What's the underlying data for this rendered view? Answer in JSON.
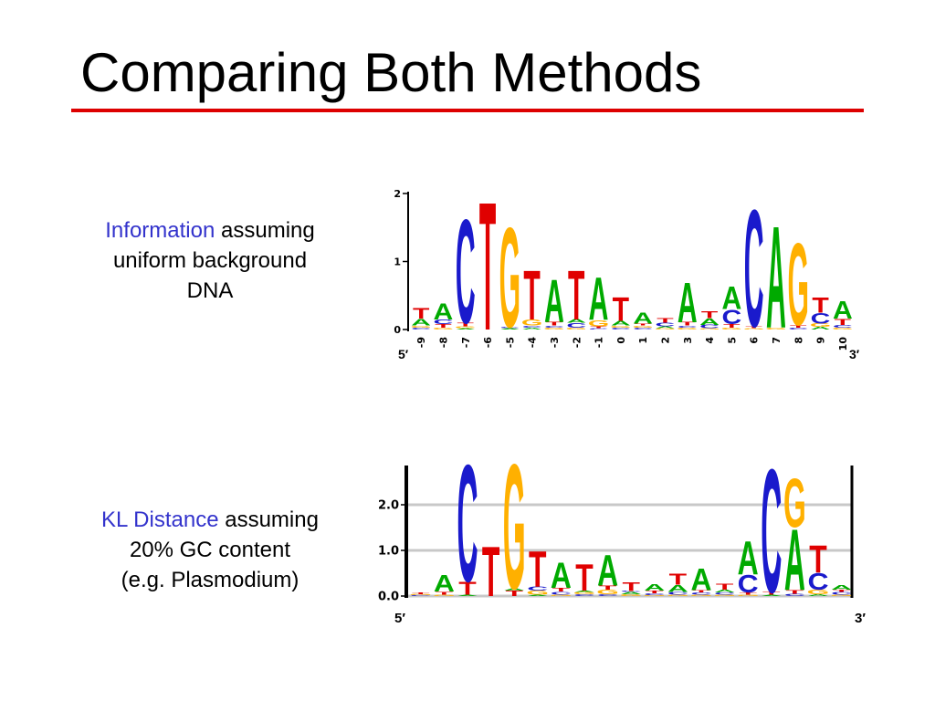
{
  "slide": {
    "title": "Comparing Both Methods"
  },
  "colors": {
    "A": "#00aa00",
    "C": "#1a1acc",
    "G": "#ffb000",
    "T": "#e00000",
    "accent_rule": "#dd0000",
    "highlight": "#3333cc"
  },
  "captions": [
    {
      "highlight": "Information",
      "rest": "assuming",
      "line2": "uniform background",
      "line3": "DNA"
    },
    {
      "highlight": "KL Distance",
      "rest": "assuming",
      "line2": "20% GC content",
      "line3": "(e.g. Plasmodium)"
    }
  ],
  "chart_data": [
    {
      "type": "sequence-logo",
      "ylim": [
        0,
        2
      ],
      "y_ticks": [
        "0",
        "1",
        "2"
      ],
      "x_labels": [
        "-9",
        "-8",
        "-7",
        "-6",
        "-5",
        "-4",
        "-3",
        "-2",
        "-1",
        "0",
        "1",
        "2",
        "3",
        "4",
        "5",
        "6",
        "7",
        "8",
        "9",
        "10"
      ],
      "end_labels": [
        "5′",
        "3′"
      ],
      "positions": [
        [
          [
            "C",
            0.03
          ],
          [
            "G",
            0.03
          ],
          [
            "A",
            0.1
          ],
          [
            "T",
            0.16
          ]
        ],
        [
          [
            "G",
            0.03
          ],
          [
            "T",
            0.05
          ],
          [
            "C",
            0.07
          ],
          [
            "A",
            0.24
          ]
        ],
        [
          [
            "A",
            0.02
          ],
          [
            "G",
            0.03
          ],
          [
            "T",
            0.05
          ],
          [
            "C",
            1.58
          ]
        ],
        [
          [
            "T",
            1.95
          ]
        ],
        [
          [
            "A",
            0.02
          ],
          [
            "C",
            0.02
          ],
          [
            "G",
            1.52
          ]
        ],
        [
          [
            "A",
            0.03
          ],
          [
            "C",
            0.03
          ],
          [
            "G",
            0.09
          ],
          [
            "T",
            0.75
          ]
        ],
        [
          [
            "G",
            0.03
          ],
          [
            "C",
            0.03
          ],
          [
            "T",
            0.05
          ],
          [
            "A",
            0.65
          ]
        ],
        [
          [
            "G",
            0.03
          ],
          [
            "C",
            0.07
          ],
          [
            "A",
            0.05
          ],
          [
            "T",
            0.75
          ]
        ],
        [
          [
            "C",
            0.02
          ],
          [
            "T",
            0.03
          ],
          [
            "G",
            0.09
          ],
          [
            "A",
            0.65
          ]
        ],
        [
          [
            "C",
            0.03
          ],
          [
            "G",
            0.03
          ],
          [
            "A",
            0.07
          ],
          [
            "T",
            0.36
          ]
        ],
        [
          [
            "C",
            0.03
          ],
          [
            "G",
            0.03
          ],
          [
            "T",
            0.03
          ],
          [
            "A",
            0.17
          ]
        ],
        [
          [
            "G",
            0.02
          ],
          [
            "A",
            0.03
          ],
          [
            "C",
            0.05
          ],
          [
            "T",
            0.07
          ]
        ],
        [
          [
            "G",
            0.03
          ],
          [
            "C",
            0.03
          ],
          [
            "T",
            0.05
          ],
          [
            "A",
            0.6
          ]
        ],
        [
          [
            "G",
            0.02
          ],
          [
            "C",
            0.05
          ],
          [
            "A",
            0.1
          ],
          [
            "T",
            0.11
          ]
        ],
        [
          [
            "G",
            0.03
          ],
          [
            "T",
            0.05
          ],
          [
            "C",
            0.22
          ],
          [
            "A",
            0.34
          ]
        ],
        [
          [
            "G",
            0.02
          ],
          [
            "T",
            0.03
          ],
          [
            "C",
            1.78
          ]
        ],
        [
          [
            "G",
            0.03
          ],
          [
            "A",
            1.55
          ]
        ],
        [
          [
            "C",
            0.03
          ],
          [
            "T",
            0.04
          ],
          [
            "G",
            1.25
          ]
        ],
        [
          [
            "A",
            0.04
          ],
          [
            "G",
            0.05
          ],
          [
            "C",
            0.16
          ],
          [
            "T",
            0.23
          ]
        ],
        [
          [
            "G",
            0.03
          ],
          [
            "C",
            0.04
          ],
          [
            "T",
            0.09
          ],
          [
            "A",
            0.27
          ]
        ]
      ]
    },
    {
      "type": "sequence-logo",
      "ylim": [
        0,
        3
      ],
      "y_ticks": [
        "0.0",
        "1.0",
        "2.0"
      ],
      "end_labels": [
        "5′",
        "3′"
      ],
      "positions": [
        [
          [
            "C",
            0.02
          ],
          [
            "G",
            0.02
          ],
          [
            "T",
            0.04
          ]
        ],
        [
          [
            "G",
            0.03
          ],
          [
            "T",
            0.07
          ],
          [
            "A",
            0.38
          ]
        ],
        [
          [
            "A",
            0.03
          ],
          [
            "T",
            0.3
          ],
          [
            "C",
            2.65
          ]
        ],
        [
          [
            "T",
            1.13
          ]
        ],
        [
          [
            "T",
            0.12
          ],
          [
            "A",
            0.05
          ],
          [
            "G",
            2.83
          ]
        ],
        [
          [
            "A",
            0.03
          ],
          [
            "G",
            0.09
          ],
          [
            "C",
            0.09
          ],
          [
            "T",
            0.8
          ]
        ],
        [
          [
            "G",
            0.03
          ],
          [
            "C",
            0.07
          ],
          [
            "T",
            0.08
          ],
          [
            "A",
            0.58
          ]
        ],
        [
          [
            "C",
            0.04
          ],
          [
            "G",
            0.05
          ],
          [
            "A",
            0.03
          ],
          [
            "T",
            0.6
          ]
        ],
        [
          [
            "C",
            0.04
          ],
          [
            "G",
            0.1
          ],
          [
            "T",
            0.09
          ],
          [
            "A",
            0.7
          ]
        ],
        [
          [
            "G",
            0.04
          ],
          [
            "A",
            0.05
          ],
          [
            "C",
            0.02
          ],
          [
            "T",
            0.2
          ]
        ],
        [
          [
            "G",
            0.02
          ],
          [
            "C",
            0.04
          ],
          [
            "T",
            0.06
          ],
          [
            "A",
            0.15
          ]
        ],
        [
          [
            "G",
            0.03
          ],
          [
            "C",
            0.06
          ],
          [
            "A",
            0.16
          ],
          [
            "T",
            0.25
          ]
        ],
        [
          [
            "G",
            0.03
          ],
          [
            "C",
            0.05
          ],
          [
            "T",
            0.05
          ],
          [
            "A",
            0.5
          ]
        ],
        [
          [
            "G",
            0.03
          ],
          [
            "C",
            0.05
          ],
          [
            "A",
            0.06
          ],
          [
            "T",
            0.13
          ]
        ],
        [
          [
            "G",
            0.03
          ],
          [
            "T",
            0.05
          ],
          [
            "C",
            0.4
          ],
          [
            "A",
            0.75
          ]
        ],
        [
          [
            "A",
            0.03
          ],
          [
            "T",
            0.06
          ],
          [
            "C",
            2.8
          ]
        ],
        [
          [
            "C",
            0.05
          ],
          [
            "T",
            0.08
          ],
          [
            "A",
            1.38
          ],
          [
            "G",
            1.1
          ]
        ],
        [
          [
            "A",
            0.04
          ],
          [
            "G",
            0.1
          ],
          [
            "C",
            0.38
          ],
          [
            "T",
            0.62
          ]
        ],
        [
          [
            "G",
            0.03
          ],
          [
            "C",
            0.06
          ],
          [
            "T",
            0.05
          ],
          [
            "A",
            0.1
          ]
        ]
      ]
    }
  ]
}
